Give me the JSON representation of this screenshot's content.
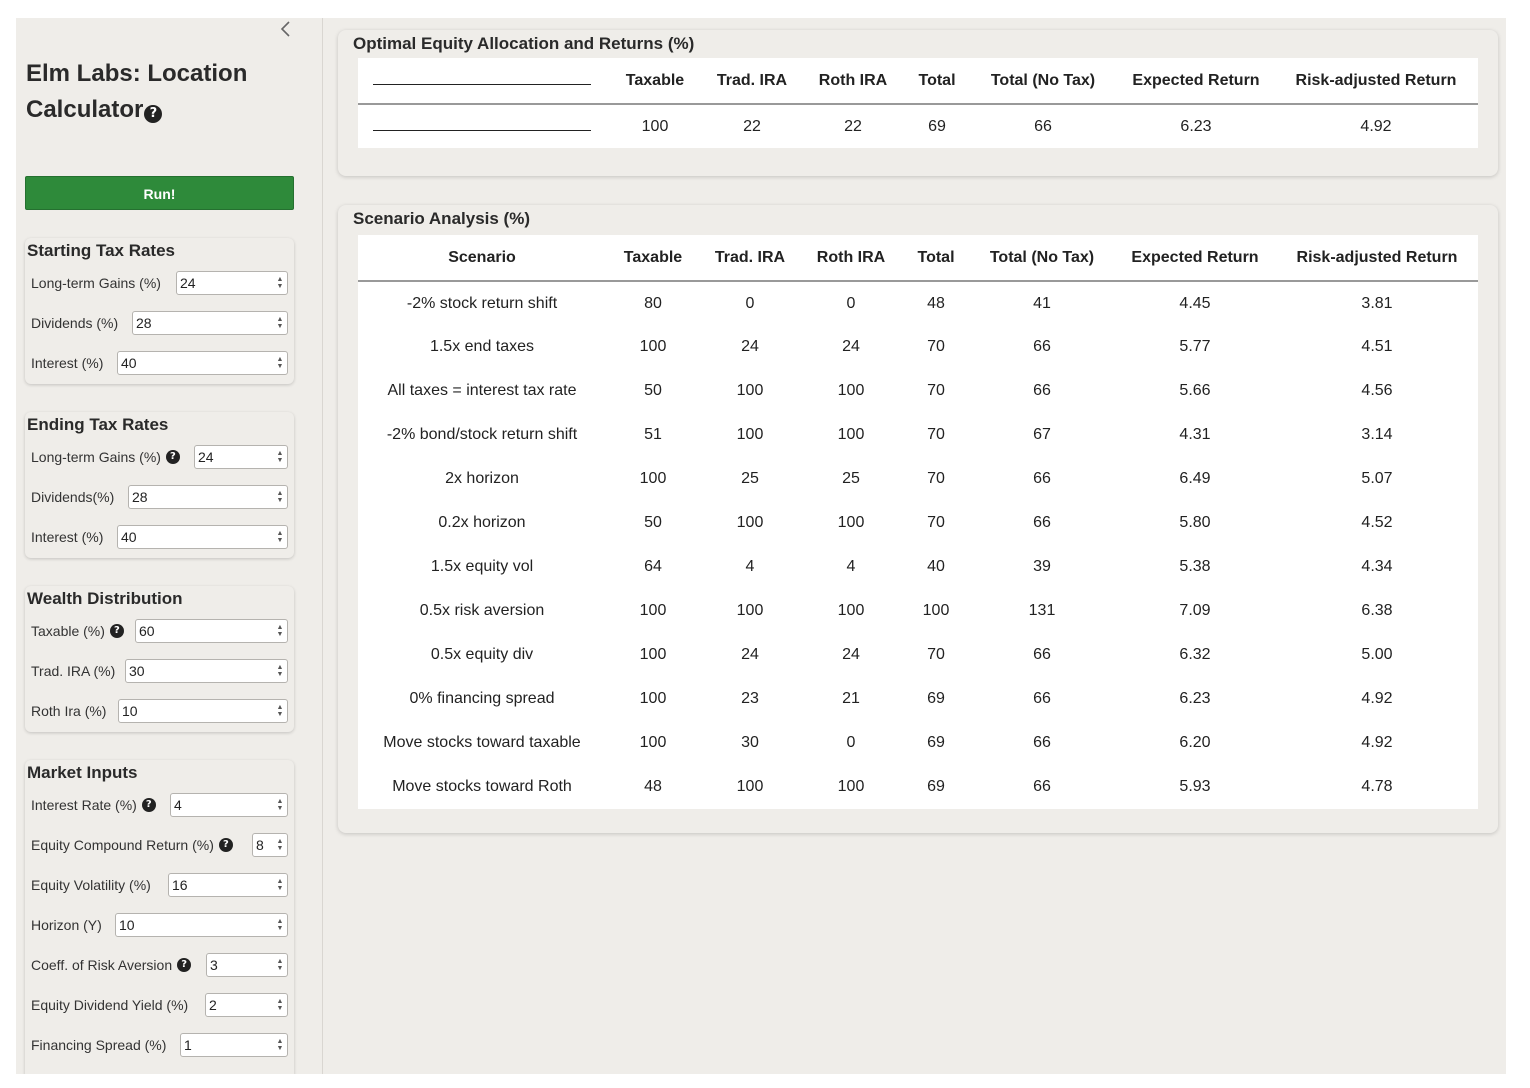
{
  "sidebar": {
    "title": "Elm Labs: Location Calculator",
    "run_label": "Run!",
    "sections": {
      "starting": {
        "title": "Starting Tax Rates",
        "fields": [
          {
            "label": "Long-term Gains (%)",
            "value": "24",
            "help": false
          },
          {
            "label": "Dividends (%)",
            "value": "28",
            "help": false
          },
          {
            "label": "Interest (%)",
            "value": "40",
            "help": false
          }
        ]
      },
      "ending": {
        "title": "Ending Tax Rates",
        "fields": [
          {
            "label": "Long-term Gains (%)",
            "value": "24",
            "help": true
          },
          {
            "label": "Dividends(%)",
            "value": "28",
            "help": false
          },
          {
            "label": "Interest (%)",
            "value": "40",
            "help": false
          }
        ]
      },
      "wealth": {
        "title": "Wealth Distribution",
        "fields": [
          {
            "label": "Taxable (%)",
            "value": "60",
            "help": true
          },
          {
            "label": "Trad. IRA (%)",
            "value": "30",
            "help": false
          },
          {
            "label": "Roth Ira (%)",
            "value": "10",
            "help": false
          }
        ]
      },
      "market": {
        "title": "Market Inputs",
        "fields": [
          {
            "label": "Interest Rate (%)",
            "value": "4",
            "help": true
          },
          {
            "label": "Equity Compound Return (%)",
            "value": "8",
            "help": true
          },
          {
            "label": "Equity Volatility (%)",
            "value": "16",
            "help": false
          },
          {
            "label": "Horizon (Y)",
            "value": "10",
            "help": false
          },
          {
            "label": "Coeff. of Risk Aversion",
            "value": "3",
            "help": true
          },
          {
            "label": "Equity Dividend Yield (%)",
            "value": "2",
            "help": false
          },
          {
            "label": "Financing Spread (%)",
            "value": "1",
            "help": false
          }
        ]
      }
    }
  },
  "optimal": {
    "title": "Optimal Equity Allocation and Returns (%)",
    "headers": [
      "",
      "Taxable",
      "Trad. IRA",
      "Roth IRA",
      "Total",
      "Total (No Tax)",
      "Expected Return",
      "Risk-adjusted Return"
    ],
    "row": [
      "",
      "100",
      "22",
      "22",
      "69",
      "66",
      "6.23",
      "4.92"
    ]
  },
  "scenarios": {
    "title": "Scenario Analysis (%)",
    "headers": [
      "Scenario",
      "Taxable",
      "Trad. IRA",
      "Roth IRA",
      "Total",
      "Total (No Tax)",
      "Expected Return",
      "Risk-adjusted Return"
    ],
    "rows": [
      [
        "-2% stock return shift",
        "80",
        "0",
        "0",
        "48",
        "41",
        "4.45",
        "3.81"
      ],
      [
        "1.5x end taxes",
        "100",
        "24",
        "24",
        "70",
        "66",
        "5.77",
        "4.51"
      ],
      [
        "All taxes = interest tax rate",
        "50",
        "100",
        "100",
        "70",
        "66",
        "5.66",
        "4.56"
      ],
      [
        "-2% bond/stock return shift",
        "51",
        "100",
        "100",
        "70",
        "67",
        "4.31",
        "3.14"
      ],
      [
        "2x horizon",
        "100",
        "25",
        "25",
        "70",
        "66",
        "6.49",
        "5.07"
      ],
      [
        "0.2x horizon",
        "50",
        "100",
        "100",
        "70",
        "66",
        "5.80",
        "4.52"
      ],
      [
        "1.5x equity vol",
        "64",
        "4",
        "4",
        "40",
        "39",
        "5.38",
        "4.34"
      ],
      [
        "0.5x risk aversion",
        "100",
        "100",
        "100",
        "100",
        "131",
        "7.09",
        "6.38"
      ],
      [
        "0.5x equity div",
        "100",
        "24",
        "24",
        "70",
        "66",
        "6.32",
        "5.00"
      ],
      [
        "0% financing spread",
        "100",
        "23",
        "21",
        "69",
        "66",
        "6.23",
        "4.92"
      ],
      [
        "Move stocks toward taxable",
        "100",
        "30",
        "0",
        "69",
        "66",
        "6.20",
        "4.92"
      ],
      [
        "Move stocks toward Roth",
        "48",
        "100",
        "100",
        "69",
        "66",
        "5.93",
        "4.78"
      ]
    ]
  },
  "icons": {
    "collapse": "chevron-left-icon",
    "help": "question-circle-icon"
  },
  "colors": {
    "background": "#efede9",
    "run_button": "#2e8a3a"
  }
}
